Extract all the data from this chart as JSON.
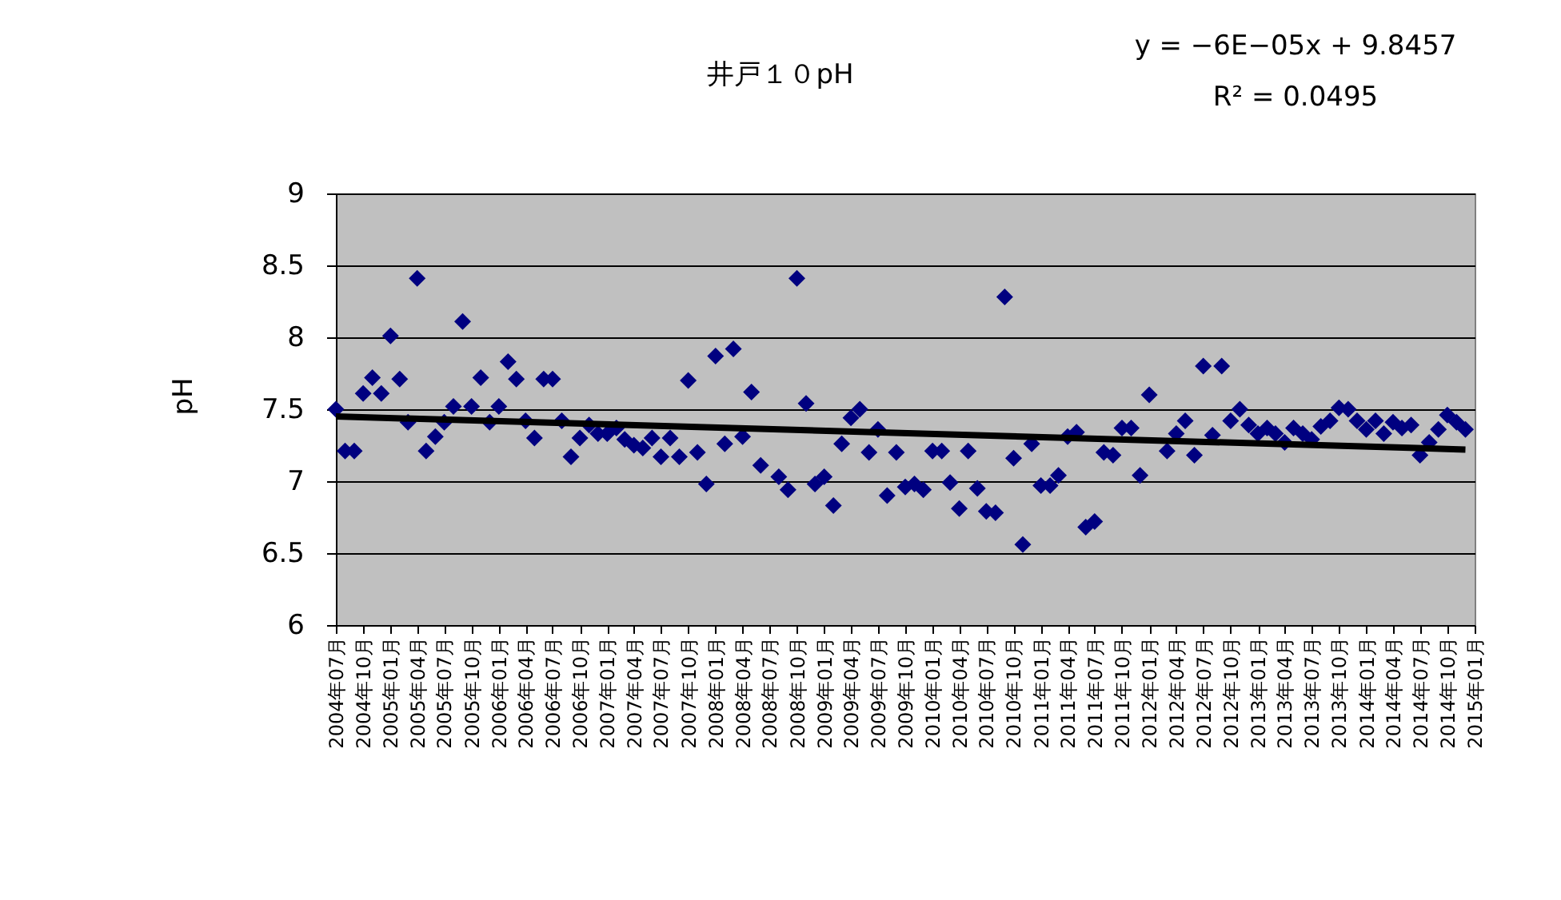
{
  "chart_data": {
    "type": "scatter",
    "title": "井戸１０pH",
    "ylabel": "pH",
    "annotations": [
      "y = −6E−05x + 9.8457",
      "R² = 0.0495"
    ],
    "x": [
      "2004-07",
      "2004-08",
      "2004-09",
      "2004-10",
      "2004-11",
      "2004-12",
      "2005-01",
      "2005-02",
      "2005-03",
      "2005-04",
      "2005-05",
      "2005-06",
      "2005-07",
      "2005-08",
      "2005-09",
      "2005-10",
      "2005-11",
      "2005-12",
      "2006-01",
      "2006-02",
      "2006-03",
      "2006-04",
      "2006-05",
      "2006-06",
      "2006-07",
      "2006-08",
      "2006-09",
      "2006-10",
      "2006-11",
      "2006-12",
      "2007-01",
      "2007-02",
      "2007-03",
      "2007-04",
      "2007-05",
      "2007-06",
      "2007-07",
      "2007-08",
      "2007-09",
      "2007-10",
      "2007-11",
      "2007-12",
      "2008-01",
      "2008-02",
      "2008-03",
      "2008-04",
      "2008-05",
      "2008-06",
      "2008-08",
      "2008-09",
      "2008-10",
      "2008-11",
      "2008-12",
      "2009-01",
      "2009-02",
      "2009-03",
      "2009-04",
      "2009-05",
      "2009-06",
      "2009-07",
      "2009-08",
      "2009-09",
      "2009-10",
      "2009-11",
      "2009-12",
      "2010-01",
      "2010-02",
      "2010-03",
      "2010-04",
      "2010-05",
      "2010-06",
      "2010-07",
      "2010-08",
      "2010-09",
      "2010-10",
      "2010-11",
      "2010-12",
      "2011-01",
      "2011-02",
      "2011-03",
      "2011-04",
      "2011-05",
      "2011-06",
      "2011-07",
      "2011-08",
      "2011-09",
      "2011-10",
      "2011-11",
      "2011-12",
      "2012-01",
      "2012-03",
      "2012-04",
      "2012-05",
      "2012-06",
      "2012-07",
      "2012-08",
      "2012-09",
      "2012-10",
      "2012-11",
      "2012-12",
      "2013-01",
      "2013-02",
      "2013-03",
      "2013-04",
      "2013-05",
      "2013-06",
      "2013-07",
      "2013-08",
      "2013-09",
      "2013-10",
      "2013-11",
      "2013-12",
      "2014-01",
      "2014-02",
      "2014-03",
      "2014-04",
      "2014-05",
      "2014-06",
      "2014-07",
      "2014-08",
      "2014-09",
      "2014-10",
      "2014-11",
      "2014-12"
    ],
    "series": [
      {
        "color": "#000080",
        "marker": "diamond",
        "values": [
          7.5,
          7.21,
          7.21,
          7.61,
          7.72,
          7.61,
          8.01,
          7.71,
          7.41,
          8.41,
          7.21,
          7.31,
          7.41,
          7.52,
          8.11,
          7.52,
          7.72,
          7.41,
          7.52,
          7.83,
          7.71,
          7.42,
          7.3,
          7.71,
          7.71,
          7.42,
          7.17,
          7.3,
          7.39,
          7.33,
          7.33,
          7.37,
          7.29,
          7.25,
          7.23,
          7.3,
          7.17,
          7.3,
          7.17,
          7.7,
          7.2,
          6.98,
          7.87,
          7.26,
          7.92,
          7.31,
          7.62,
          7.11,
          7.03,
          6.94,
          8.41,
          7.54,
          6.98,
          7.03,
          6.83,
          7.26,
          7.44,
          7.5,
          7.2,
          7.36,
          6.9,
          7.2,
          6.96,
          6.98,
          6.94,
          7.21,
          7.21,
          6.99,
          6.81,
          7.21,
          6.95,
          6.79,
          6.78,
          8.28,
          7.16,
          6.56,
          7.26,
          6.97,
          6.97,
          7.04,
          7.31,
          7.34,
          6.68,
          6.72,
          7.2,
          7.18,
          7.37,
          7.37,
          7.04,
          7.6,
          7.21,
          7.33,
          7.42,
          7.18,
          7.8,
          7.32,
          7.8,
          7.42,
          7.5,
          7.39,
          7.33,
          7.37,
          7.33,
          7.27,
          7.37,
          7.33,
          7.29,
          7.38,
          7.42,
          7.51,
          7.5,
          7.42,
          7.36,
          7.42,
          7.33,
          7.41,
          7.37,
          7.39,
          7.18,
          7.27,
          7.36,
          7.46,
          7.41,
          7.36
        ]
      },
      {
        "type": "line",
        "color": "#000000",
        "line_style": "solid",
        "x": [
          "2004-07",
          "2014-12"
        ],
        "values": [
          7.45,
          7.22
        ]
      }
    ],
    "xlim": [
      "2004-07",
      "2015-01"
    ],
    "xticks": [
      {
        "value": "2004-07",
        "label": "2004年07月"
      },
      {
        "value": "2004-10",
        "label": "2004年10月"
      },
      {
        "value": "2005-01",
        "label": "2005年01月"
      },
      {
        "value": "2005-04",
        "label": "2005年04月"
      },
      {
        "value": "2005-07",
        "label": "2005年07月"
      },
      {
        "value": "2005-10",
        "label": "2005年10月"
      },
      {
        "value": "2006-01",
        "label": "2006年01月"
      },
      {
        "value": "2006-04",
        "label": "2006年04月"
      },
      {
        "value": "2006-07",
        "label": "2006年07月"
      },
      {
        "value": "2006-10",
        "label": "2006年10月"
      },
      {
        "value": "2007-01",
        "label": "2007年01月"
      },
      {
        "value": "2007-04",
        "label": "2007年04月"
      },
      {
        "value": "2007-07",
        "label": "2007年07月"
      },
      {
        "value": "2007-10",
        "label": "2007年10月"
      },
      {
        "value": "2008-01",
        "label": "2008年01月"
      },
      {
        "value": "2008-04",
        "label": "2008年04月"
      },
      {
        "value": "2008-07",
        "label": "2008年07月"
      },
      {
        "value": "2008-10",
        "label": "2008年10月"
      },
      {
        "value": "2009-01",
        "label": "2009年01月"
      },
      {
        "value": "2009-04",
        "label": "2009年04月"
      },
      {
        "value": "2009-07",
        "label": "2009年07月"
      },
      {
        "value": "2009-10",
        "label": "2009年10月"
      },
      {
        "value": "2010-01",
        "label": "2010年01月"
      },
      {
        "value": "2010-04",
        "label": "2010年04月"
      },
      {
        "value": "2010-07",
        "label": "2010年07月"
      },
      {
        "value": "2010-10",
        "label": "2010年10月"
      },
      {
        "value": "2011-01",
        "label": "2011年01月"
      },
      {
        "value": "2011-04",
        "label": "2011年04月"
      },
      {
        "value": "2011-07",
        "label": "2011年07月"
      },
      {
        "value": "2011-10",
        "label": "2011年10月"
      },
      {
        "value": "2012-01",
        "label": "2012年01月"
      },
      {
        "value": "2012-04",
        "label": "2012年04月"
      },
      {
        "value": "2012-07",
        "label": "2012年07月"
      },
      {
        "value": "2012-10",
        "label": "2012年10月"
      },
      {
        "value": "2013-01",
        "label": "2013年01月"
      },
      {
        "value": "2013-04",
        "label": "2013年04月"
      },
      {
        "value": "2013-07",
        "label": "2013年07月"
      },
      {
        "value": "2013-10",
        "label": "2013年10月"
      },
      {
        "value": "2014-01",
        "label": "2014年01月"
      },
      {
        "value": "2014-04",
        "label": "2014年04月"
      },
      {
        "value": "2014-07",
        "label": "2014年07月"
      },
      {
        "value": "2014-10",
        "label": "2014年10月"
      },
      {
        "value": "2015-01",
        "label": "2015年01月"
      }
    ],
    "ylim": [
      6,
      9
    ],
    "yticks": [
      6,
      6.5,
      7,
      7.5,
      8,
      8.5,
      9
    ],
    "grid": "y"
  }
}
